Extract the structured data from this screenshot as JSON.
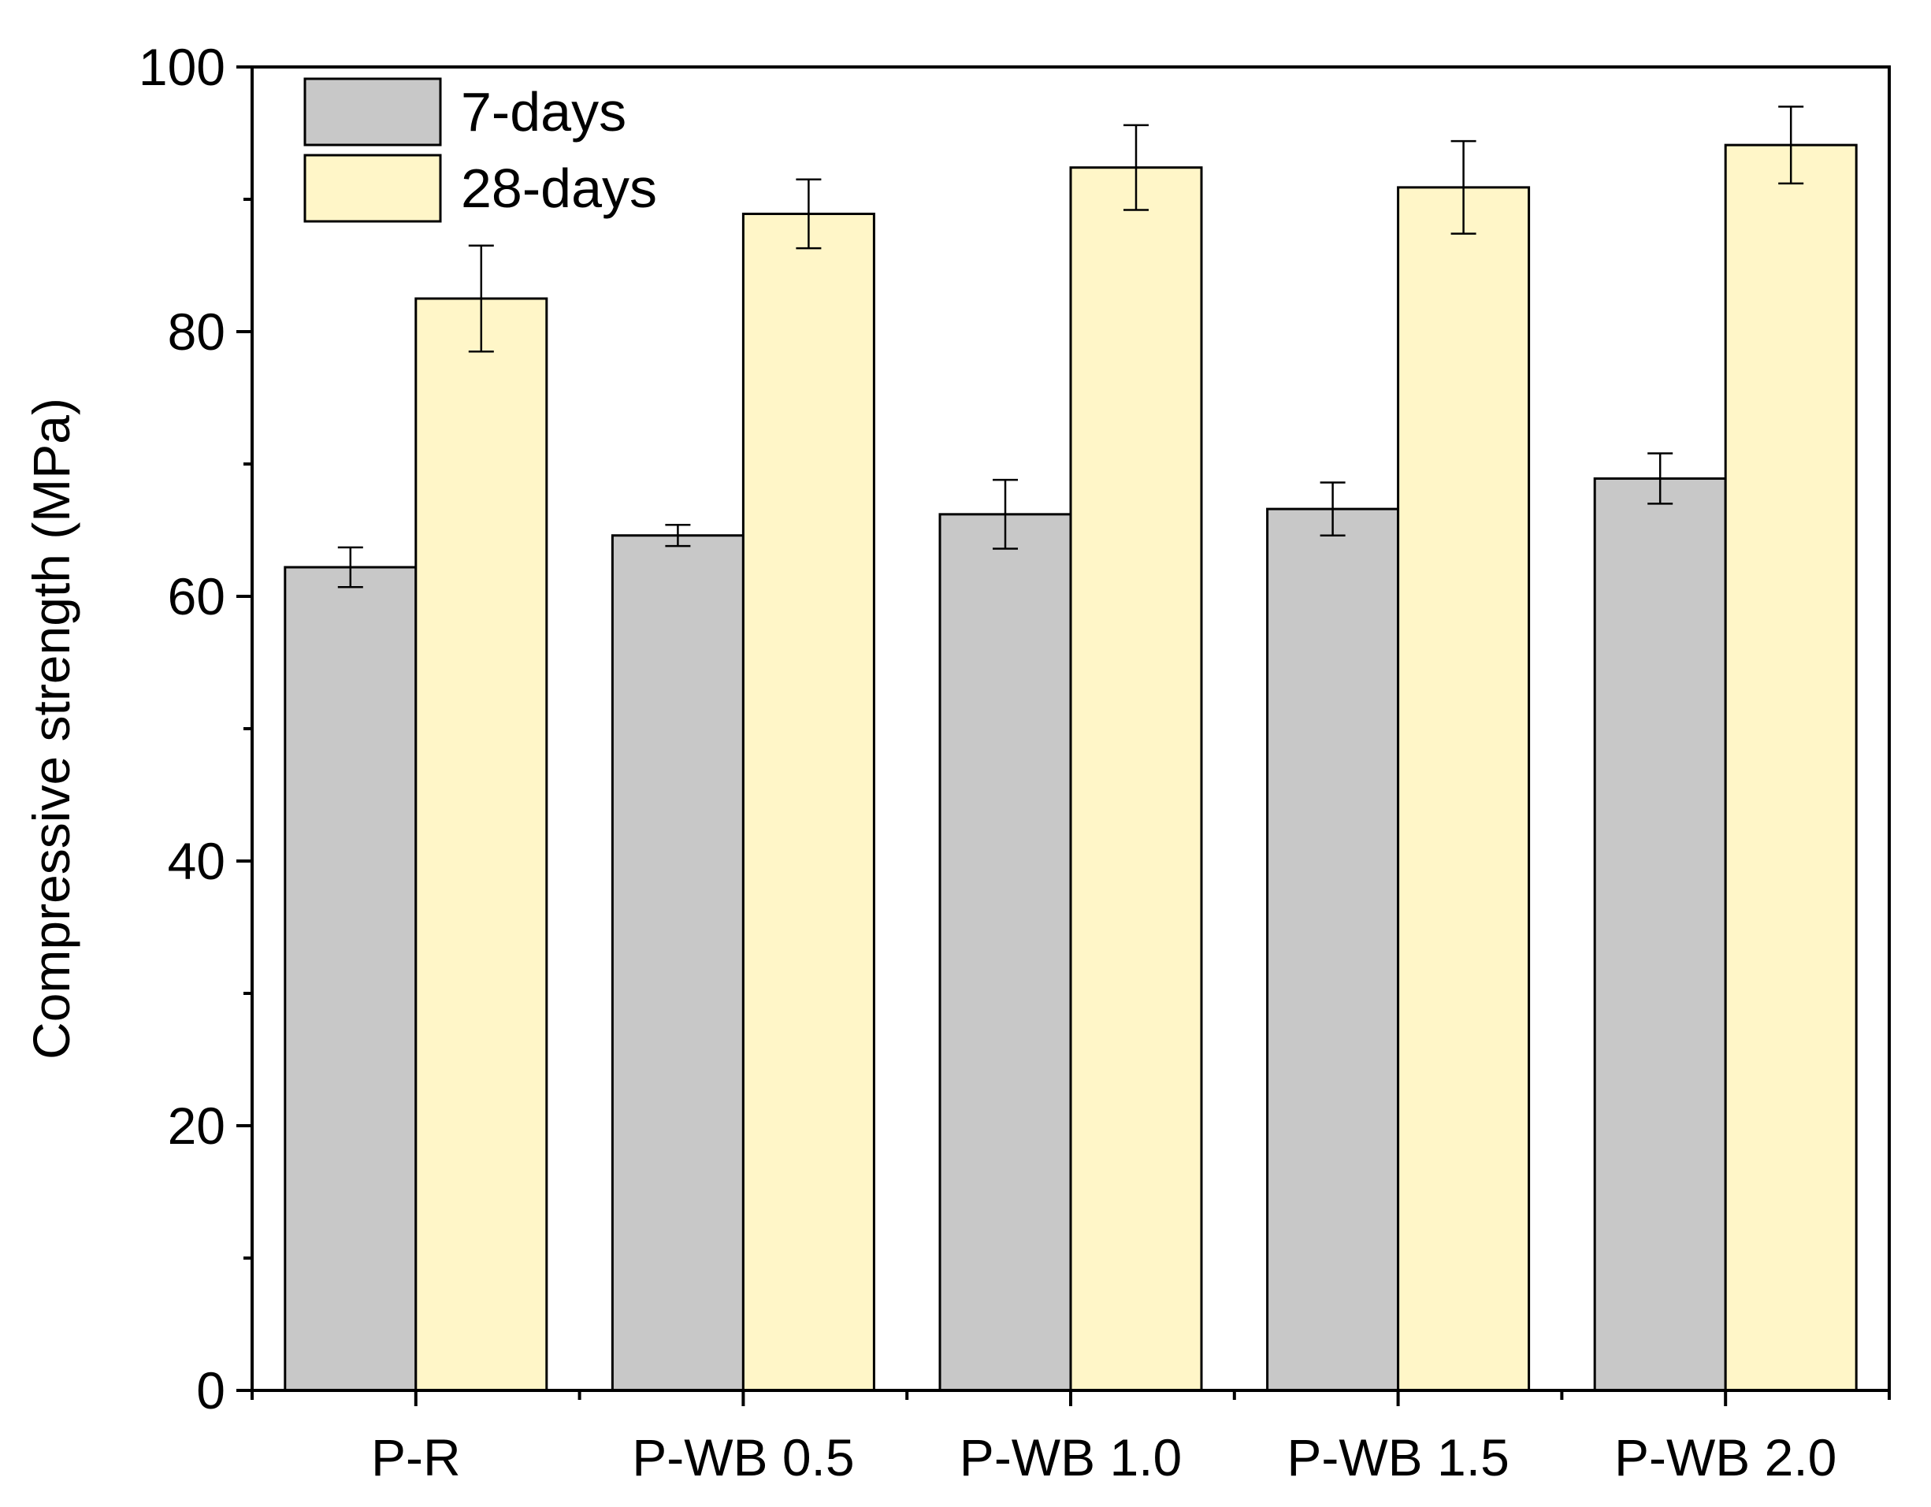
{
  "chart_data": {
    "type": "bar",
    "title": "",
    "xlabel": "",
    "ylabel": "Compressive strength (MPa)",
    "ylim": [
      0,
      100
    ],
    "yticks": [
      0,
      20,
      40,
      60,
      80,
      100
    ],
    "yticks_minor": [
      10,
      30,
      50,
      70,
      90
    ],
    "categories": [
      "P-R",
      "P-WB 0.5",
      "P-WB 1.0",
      "P-WB 1.5",
      "P-WB 2.0"
    ],
    "series": [
      {
        "name": "7-days",
        "color": "#c8c8c8",
        "values": [
          62.2,
          64.6,
          66.2,
          66.6,
          68.9
        ],
        "errors": [
          1.5,
          0.8,
          2.6,
          2.0,
          1.9
        ]
      },
      {
        "name": "28-days",
        "color": "#fff6c8",
        "values": [
          82.5,
          88.9,
          92.4,
          90.9,
          94.1
        ],
        "errors": [
          4.0,
          2.6,
          3.2,
          3.5,
          2.9
        ]
      }
    ],
    "legend_position": "top-left",
    "grid": false
  }
}
